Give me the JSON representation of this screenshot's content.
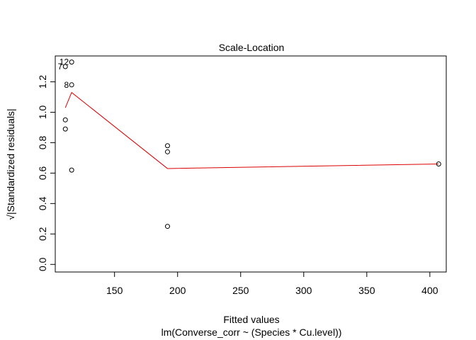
{
  "chart_data": {
    "type": "scatter",
    "title": "Scale-Location",
    "xlabel": "Fitted values",
    "sublabel": "lm(Converse_corr ~ (Species * Cu.level))",
    "ylabel": "√|Standardized residuals|",
    "xlim": [
      103,
      413
    ],
    "ylim": [
      -0.05,
      1.37
    ],
    "x_ticks": [
      150,
      200,
      250,
      300,
      350,
      400
    ],
    "x_tick_labels": [
      "150",
      "200",
      "250",
      "300",
      "350",
      "400"
    ],
    "y_ticks": [
      0.0,
      0.2,
      0.4,
      0.6,
      0.8,
      1.0,
      1.2
    ],
    "y_tick_labels": [
      "0.0",
      "0.2",
      "0.4",
      "0.6",
      "0.8",
      "1.0",
      "1.2"
    ],
    "points": [
      {
        "x": 111,
        "y": 1.3
      },
      {
        "x": 116,
        "y": 1.33
      },
      {
        "x": 116,
        "y": 1.18
      },
      {
        "x": 111,
        "y": 0.95
      },
      {
        "x": 111,
        "y": 0.89
      },
      {
        "x": 116,
        "y": 0.62
      },
      {
        "x": 192,
        "y": 0.78
      },
      {
        "x": 192,
        "y": 0.74
      },
      {
        "x": 192,
        "y": 0.25
      },
      {
        "x": 407,
        "y": 0.66
      }
    ],
    "point_labels": [
      {
        "text": "7",
        "x": 111,
        "y": 1.3
      },
      {
        "text": "12",
        "x": 116,
        "y": 1.33
      },
      {
        "text": "8",
        "x": 116,
        "y": 1.18
      }
    ],
    "smooth_line": {
      "color": "#dd0000",
      "points": [
        {
          "x": 111,
          "y": 1.03
        },
        {
          "x": 116,
          "y": 1.13
        },
        {
          "x": 192,
          "y": 0.63
        },
        {
          "x": 407,
          "y": 0.66
        }
      ]
    },
    "grid": false,
    "legend": "none"
  }
}
